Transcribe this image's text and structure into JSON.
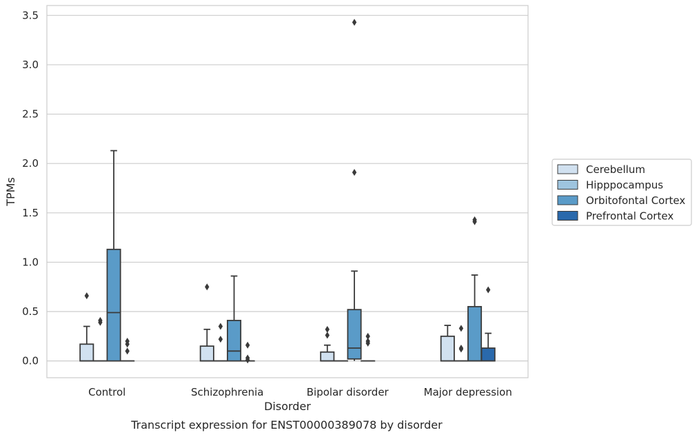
{
  "chart_data": {
    "type": "boxplot",
    "xlabel": "Disorder",
    "ylabel": "TPMs",
    "caption": "Transcript expression for ENST00000389078 by disorder",
    "categories": [
      "Control",
      "Schizophrenia",
      "Bipolar disorder",
      "Major depression"
    ],
    "ylim": [
      -0.17,
      3.6
    ],
    "yticks": [
      0.0,
      0.5,
      1.0,
      1.5,
      2.0,
      2.5,
      3.0,
      3.5
    ],
    "ytick_labels": [
      "0.0",
      "0.5",
      "1.0",
      "1.5",
      "2.0",
      "2.5",
      "3.0",
      "3.5"
    ],
    "grid": "horizontal",
    "legend_position": "right",
    "series": [
      {
        "name": "Cerebellum",
        "color": "#d1e1f0",
        "boxes": [
          {
            "q1": 0.0,
            "median": 0.0,
            "q3": 0.17,
            "whisker_low": 0.0,
            "whisker_high": 0.35,
            "outliers": [
              0.66
            ]
          },
          {
            "q1": 0.0,
            "median": 0.0,
            "q3": 0.15,
            "whisker_low": 0.0,
            "whisker_high": 0.32,
            "outliers": [
              0.75
            ]
          },
          {
            "q1": 0.0,
            "median": 0.0,
            "q3": 0.09,
            "whisker_low": 0.0,
            "whisker_high": 0.16,
            "outliers": [
              0.26,
              0.32
            ]
          },
          {
            "q1": 0.0,
            "median": 0.0,
            "q3": 0.25,
            "whisker_low": 0.0,
            "whisker_high": 0.36,
            "outliers": []
          }
        ]
      },
      {
        "name": "Hipppocampus",
        "color": "#9ec4de",
        "boxes": [
          {
            "q1": 0.0,
            "median": 0.0,
            "q3": 0.0,
            "whisker_low": 0.0,
            "whisker_high": 0.0,
            "outliers": [
              0.39,
              0.41
            ]
          },
          {
            "q1": 0.0,
            "median": 0.0,
            "q3": 0.0,
            "whisker_low": 0.0,
            "whisker_high": 0.0,
            "outliers": [
              0.22,
              0.35
            ]
          },
          {
            "q1": 0.0,
            "median": 0.0,
            "q3": 0.0,
            "whisker_low": 0.0,
            "whisker_high": 0.0,
            "outliers": []
          },
          {
            "q1": 0.0,
            "median": 0.0,
            "q3": 0.0,
            "whisker_low": 0.0,
            "whisker_high": 0.0,
            "outliers": [
              0.12,
              0.13,
              0.33
            ]
          }
        ]
      },
      {
        "name": "Orbitofontal Cortex",
        "color": "#5a9bc8",
        "boxes": [
          {
            "q1": 0.0,
            "median": 0.49,
            "q3": 1.13,
            "whisker_low": 0.0,
            "whisker_high": 2.13,
            "outliers": []
          },
          {
            "q1": 0.0,
            "median": 0.1,
            "q3": 0.41,
            "whisker_low": 0.0,
            "whisker_high": 0.86,
            "outliers": []
          },
          {
            "q1": 0.02,
            "median": 0.13,
            "q3": 0.52,
            "whisker_low": 0.0,
            "whisker_high": 0.91,
            "outliers": [
              1.91,
              3.43
            ]
          },
          {
            "q1": 0.0,
            "median": 0.0,
            "q3": 0.55,
            "whisker_low": 0.0,
            "whisker_high": 0.87,
            "outliers": [
              1.41,
              1.43
            ]
          }
        ]
      },
      {
        "name": "Prefrontal Cortex",
        "color": "#2a69ac",
        "boxes": [
          {
            "q1": 0.0,
            "median": 0.0,
            "q3": 0.0,
            "whisker_low": 0.0,
            "whisker_high": 0.0,
            "outliers": [
              0.1,
              0.17,
              0.2
            ]
          },
          {
            "q1": 0.0,
            "median": 0.0,
            "q3": 0.0,
            "whisker_low": 0.0,
            "whisker_high": 0.0,
            "outliers": [
              0.01,
              0.03,
              0.16
            ]
          },
          {
            "q1": 0.0,
            "median": 0.0,
            "q3": 0.0,
            "whisker_low": 0.0,
            "whisker_high": 0.0,
            "outliers": [
              0.18,
              0.2,
              0.25
            ]
          },
          {
            "q1": 0.0,
            "median": 0.0,
            "q3": 0.13,
            "whisker_low": 0.0,
            "whisker_high": 0.28,
            "outliers": [
              0.72
            ]
          }
        ]
      }
    ]
  }
}
